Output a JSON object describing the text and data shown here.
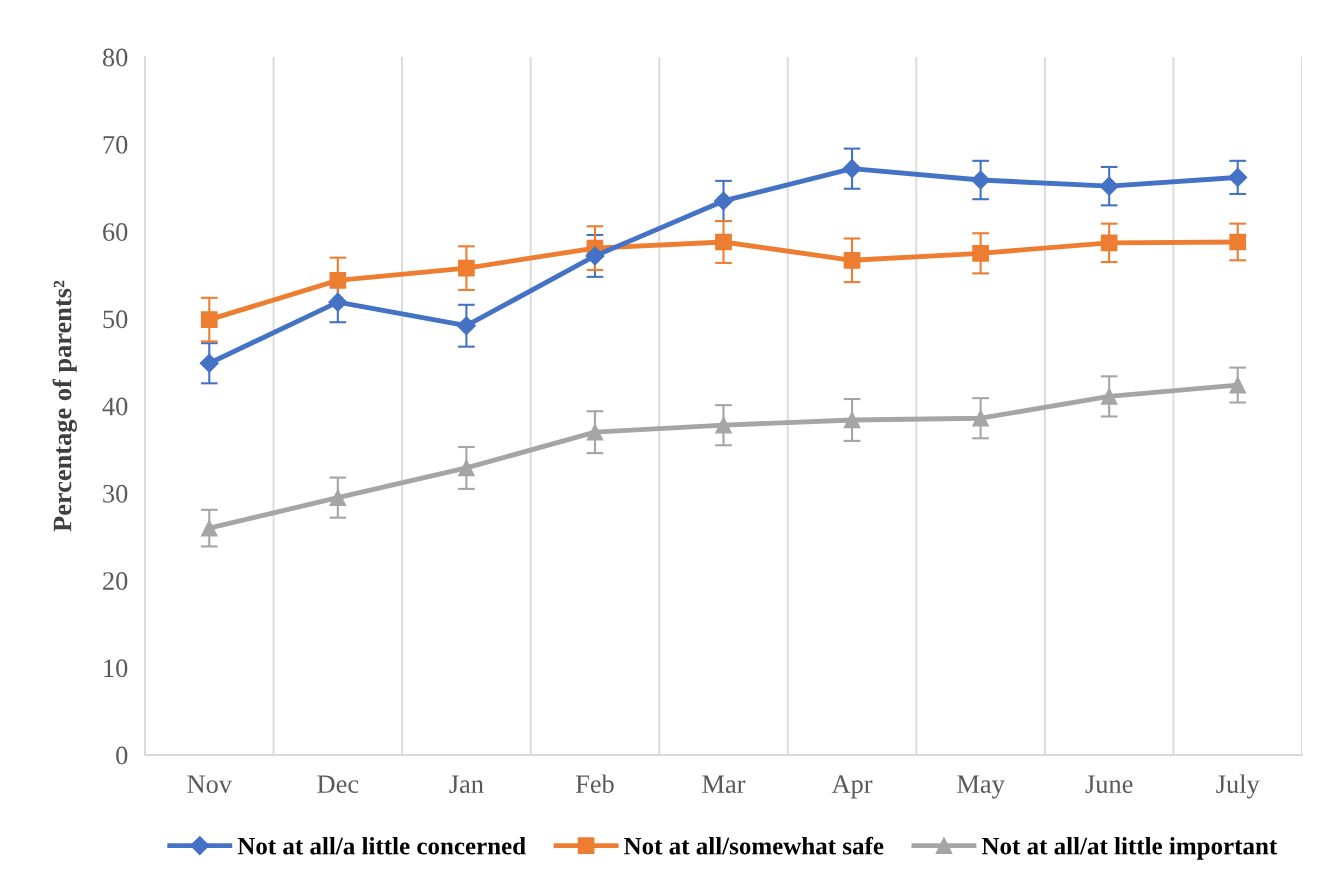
{
  "chart_data": {
    "type": "line",
    "ylabel": "Percentage of parents²",
    "categories": [
      "Nov",
      "Dec",
      "Jan",
      "Feb",
      "Mar",
      "Apr",
      "May",
      "June",
      "July"
    ],
    "series": [
      {
        "name": "Not at all/a little concerned",
        "color": "#4472c4",
        "marker": "diamond",
        "values": [
          44.9,
          51.9,
          49.2,
          57.2,
          63.5,
          67.2,
          65.9,
          65.2,
          66.2
        ],
        "errors": [
          2.3,
          2.3,
          2.4,
          2.4,
          2.3,
          2.3,
          2.2,
          2.2,
          1.9
        ]
      },
      {
        "name": "Not at all/somewhat safe",
        "color": "#ed7d31",
        "marker": "square",
        "values": [
          49.9,
          54.4,
          55.8,
          58.1,
          58.8,
          56.7,
          57.5,
          58.7,
          58.8
        ],
        "errors": [
          2.5,
          2.6,
          2.5,
          2.5,
          2.4,
          2.5,
          2.3,
          2.2,
          2.1
        ]
      },
      {
        "name": "Not at all/at little important",
        "color": "#a5a5a5",
        "marker": "triangle",
        "values": [
          26.0,
          29.5,
          32.9,
          37.0,
          37.8,
          38.4,
          38.6,
          41.1,
          42.4
        ],
        "errors": [
          2.1,
          2.3,
          2.4,
          2.4,
          2.3,
          2.4,
          2.3,
          2.3,
          2.0
        ]
      }
    ],
    "ylim": [
      0,
      80
    ],
    "yticks": [
      0,
      10,
      20,
      30,
      40,
      50,
      60,
      70,
      80
    ],
    "grid": "x",
    "legend": "bottom",
    "line_style": "solid"
  }
}
